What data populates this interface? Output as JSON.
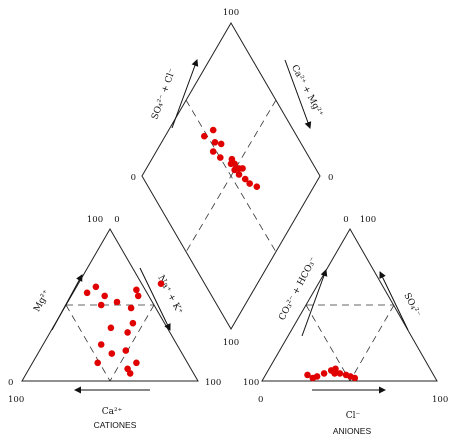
{
  "chart_data": [
    {
      "type": "scatter",
      "panel": "diamond",
      "axis_labels": {
        "upper_left": "SO₄²⁻ + Cl⁻",
        "upper_right": "Ca²⁺ + Mg²⁺"
      },
      "tick_labels": {
        "top": "100",
        "left": "0",
        "right": "0",
        "bottom": "100"
      },
      "points": [
        {
          "so4_cl": 78,
          "ca_mg": 48
        },
        {
          "so4_cl": 75,
          "ca_mg": 55
        },
        {
          "so4_cl": 70,
          "ca_mg": 52
        },
        {
          "so4_cl": 68,
          "ca_mg": 48
        },
        {
          "so4_cl": 66,
          "ca_mg": 55
        },
        {
          "so4_cl": 62,
          "ca_mg": 50
        },
        {
          "so4_cl": 55,
          "ca_mg": 56
        },
        {
          "so4_cl": 54,
          "ca_mg": 54
        },
        {
          "so4_cl": 52,
          "ca_mg": 56
        },
        {
          "so4_cl": 50,
          "ca_mg": 54
        },
        {
          "so4_cl": 48,
          "ca_mg": 57
        },
        {
          "so4_cl": 46,
          "ca_mg": 55
        },
        {
          "so4_cl": 46,
          "ca_mg": 59
        },
        {
          "so4_cl": 41,
          "ca_mg": 57
        },
        {
          "so4_cl": 37,
          "ca_mg": 58
        },
        {
          "so4_cl": 32,
          "ca_mg": 61
        }
      ]
    },
    {
      "type": "scatter",
      "panel": "cation-triangle",
      "axis_labels": {
        "left": "Mg²⁺",
        "right": "Na⁺ + K⁺",
        "bottom": "Ca²⁺"
      },
      "caption": "CATIONES",
      "tick_labels": {
        "top_left": "100",
        "top_right": "0",
        "left": "0",
        "bottom_left": "100",
        "bottom_right": "100"
      },
      "points": [
        {
          "mg": 58,
          "na_k": 8
        },
        {
          "mg": 62,
          "na_k": 11
        },
        {
          "mg": 56,
          "na_k": 19
        },
        {
          "mg": 50,
          "na_k": 20
        },
        {
          "mg": 52,
          "na_k": 28
        },
        {
          "mg": 60,
          "na_k": 35
        },
        {
          "mg": 56,
          "na_k": 38
        },
        {
          "mg": 64,
          "na_k": 47
        },
        {
          "mg": 48,
          "na_k": 38
        },
        {
          "mg": 35,
          "na_k": 33
        },
        {
          "mg": 38,
          "na_k": 44
        },
        {
          "mg": 32,
          "na_k": 44
        },
        {
          "mg": 20,
          "na_k": 49
        },
        {
          "mg": 24,
          "na_k": 33
        },
        {
          "mg": 18,
          "na_k": 42
        },
        {
          "mg": 12,
          "na_k": 59
        },
        {
          "mg": 12,
          "na_k": 37
        },
        {
          "mg": 8,
          "na_k": 56
        },
        {
          "mg": 5,
          "na_k": 59
        }
      ]
    },
    {
      "type": "scatter",
      "panel": "anion-triangle",
      "axis_labels": {
        "left": "CO₃²⁻ + HCO₃⁻",
        "right": "SO₄²⁻",
        "bottom": "Cl⁻"
      },
      "caption": "ANIONES",
      "tick_labels": {
        "top_left": "0",
        "top_right": "100",
        "left": "100",
        "bottom_left": "0",
        "bottom_right": "100"
      },
      "points": [
        {
          "so4": 4,
          "cl": 24
        },
        {
          "so4": 5,
          "cl": 33
        },
        {
          "so4": 7,
          "cl": 36
        },
        {
          "so4": 8,
          "cl": 38
        },
        {
          "so4": 5,
          "cl": 42
        },
        {
          "so4": 3,
          "cl": 30
        },
        {
          "so4": 2,
          "cl": 28
        },
        {
          "so4": 4,
          "cl": 46
        },
        {
          "so4": 3,
          "cl": 49
        },
        {
          "so4": 2,
          "cl": 52
        },
        {
          "so4": 5,
          "cl": 39
        }
      ]
    }
  ],
  "colors": {
    "point": "#e00000",
    "line": "#222222"
  }
}
